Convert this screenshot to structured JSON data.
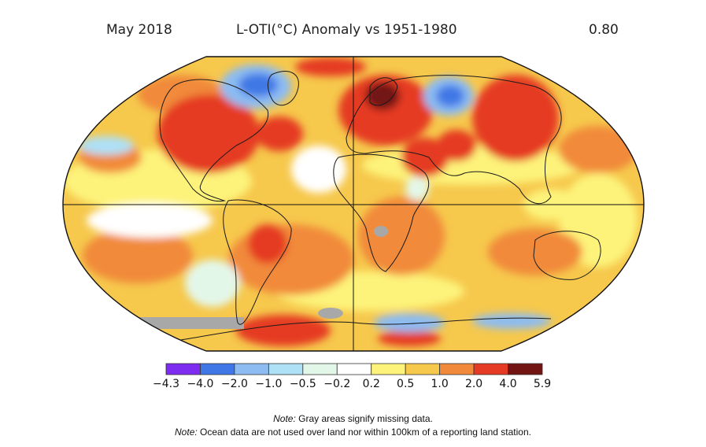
{
  "header": {
    "date": "May 2018",
    "title": "L-OTI(°C) Anomaly vs 1951-1980",
    "global_mean": "0.80"
  },
  "colorbar": {
    "ticks": [
      "-4.3",
      "-4.0",
      "-2.0",
      "-1.0",
      "-0.5",
      "-0.2",
      "0.2",
      "0.5",
      "1.0",
      "2.0",
      "4.0",
      "5.9"
    ],
    "colors": [
      "#7d2cf0",
      "#3f78e6",
      "#8cbcf2",
      "#aee0f6",
      "#e3f7e9",
      "#ffffff",
      "#fdf37a",
      "#f6c84c",
      "#f18a3a",
      "#e53a24",
      "#721412"
    ]
  },
  "notes": [
    {
      "label": "Note:",
      "text": "Gray areas signify missing data."
    },
    {
      "label": "Note:",
      "text": "Ocean data are not used over land nor within 100km of a reporting land station."
    }
  ]
}
